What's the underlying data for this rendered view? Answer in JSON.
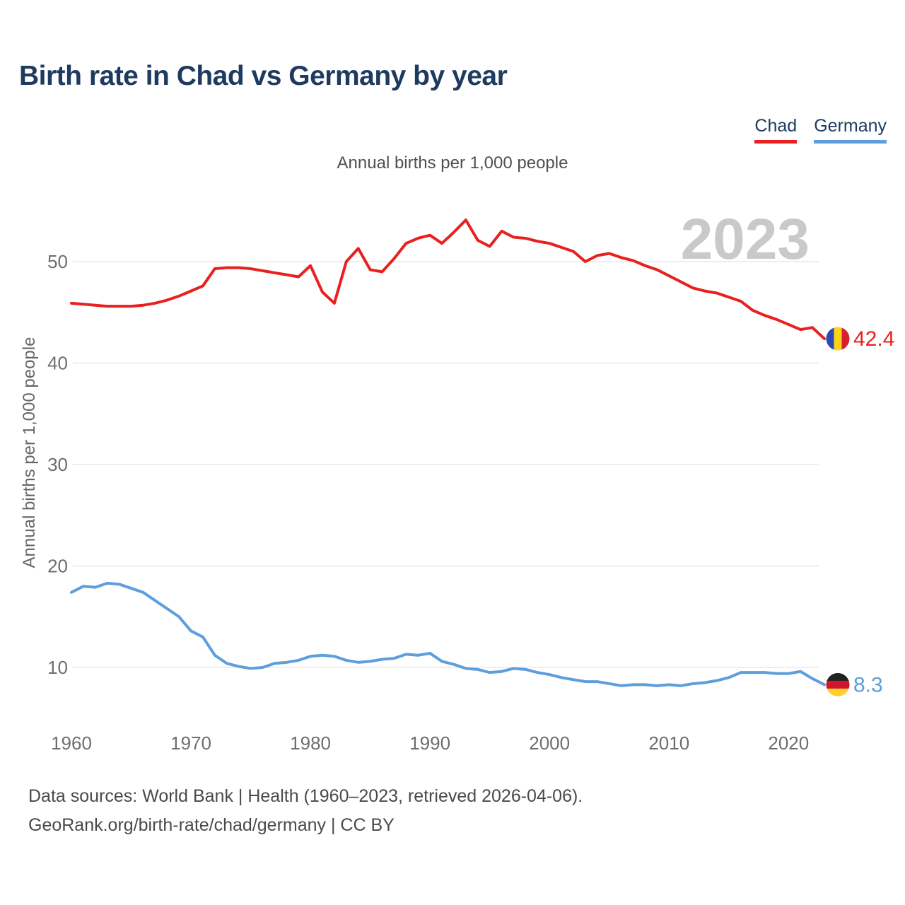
{
  "header": {
    "title": "Birth rate in Chad vs Germany by year"
  },
  "legend": [
    {
      "label": "Chad",
      "color": "#e8201e"
    },
    {
      "label": "Germany",
      "color": "#5d9edb"
    }
  ],
  "subtitle": "Annual births per 1,000 people",
  "watermark": "2023",
  "y_axis_title": "Annual births per 1,000 people",
  "footer": {
    "line1": "Data sources: World Bank | Health (1960–2023, retrieved 2026-04-06).",
    "line2": "GeoRank.org/birth-rate/chad/germany | CC BY"
  },
  "colors": {
    "title": "#1e3a5f",
    "chad": "#e8201e",
    "germany": "#5d9edb",
    "gridline": "#e8e8e8",
    "tick_label": "#6e6e6e",
    "watermark": "#c9c9c9",
    "footer_text": "#4a4a4a"
  },
  "chart_data": {
    "type": "line",
    "title": "Birth rate in Chad vs Germany by year",
    "subtitle": "Annual births per 1,000 people",
    "xlabel": "",
    "ylabel": "Annual births per 1,000 people",
    "grid": "horizontal",
    "legend_position": "top-right",
    "x_ticks": [
      1960,
      1970,
      1980,
      1990,
      2000,
      2010,
      2020
    ],
    "y_ticks": [
      10,
      20,
      30,
      40,
      50
    ],
    "ylim": [
      5,
      56
    ],
    "xlim": [
      1960,
      2023
    ],
    "x": [
      1960,
      1961,
      1962,
      1963,
      1964,
      1965,
      1966,
      1967,
      1968,
      1969,
      1970,
      1971,
      1972,
      1973,
      1974,
      1975,
      1976,
      1977,
      1978,
      1979,
      1980,
      1981,
      1982,
      1983,
      1984,
      1985,
      1986,
      1987,
      1988,
      1989,
      1990,
      1991,
      1992,
      1993,
      1994,
      1995,
      1996,
      1997,
      1998,
      1999,
      2000,
      2001,
      2002,
      2003,
      2004,
      2005,
      2006,
      2007,
      2008,
      2009,
      2010,
      2011,
      2012,
      2013,
      2014,
      2015,
      2016,
      2017,
      2018,
      2019,
      2020,
      2021,
      2022,
      2023
    ],
    "series": [
      {
        "id": "chad",
        "name": "Chad",
        "color": "#e8201e",
        "end_label": "42.4",
        "flag": {
          "icon": "chad-flag-icon",
          "orientation": "vertical",
          "colors": [
            "#2b49b6",
            "#fcd116",
            "#d7212f"
          ]
        },
        "values": [
          45.9,
          45.8,
          45.7,
          45.6,
          45.6,
          45.6,
          45.7,
          45.9,
          46.2,
          46.6,
          47.1,
          47.6,
          49.3,
          49.4,
          49.4,
          49.3,
          49.1,
          48.9,
          48.7,
          48.5,
          49.6,
          47.0,
          45.9,
          50.0,
          51.3,
          49.2,
          49.0,
          50.3,
          51.8,
          52.3,
          52.6,
          51.8,
          52.9,
          54.1,
          52.1,
          51.5,
          53.0,
          52.4,
          52.3,
          52.0,
          51.8,
          51.4,
          51.0,
          50.0,
          50.6,
          50.8,
          50.4,
          50.1,
          49.6,
          49.2,
          48.6,
          48.0,
          47.4,
          47.1,
          46.9,
          46.5,
          46.1,
          45.2,
          44.7,
          44.3,
          43.8,
          43.3,
          43.5,
          42.4
        ]
      },
      {
        "id": "germany",
        "name": "Germany",
        "color": "#5d9edb",
        "end_label": "8.3",
        "flag": {
          "icon": "germany-flag-icon",
          "orientation": "horizontal",
          "colors": [
            "#222222",
            "#d2152b",
            "#ffce33"
          ]
        },
        "values": [
          17.4,
          18.0,
          17.9,
          18.3,
          18.2,
          17.8,
          17.4,
          16.6,
          15.8,
          15.0,
          13.6,
          13.0,
          11.2,
          10.4,
          10.1,
          9.9,
          10.0,
          10.4,
          10.5,
          10.7,
          11.1,
          11.2,
          11.1,
          10.7,
          10.5,
          10.6,
          10.8,
          10.9,
          11.3,
          11.2,
          11.4,
          10.6,
          10.3,
          9.9,
          9.8,
          9.5,
          9.6,
          9.9,
          9.8,
          9.5,
          9.3,
          9.0,
          8.8,
          8.6,
          8.6,
          8.4,
          8.2,
          8.3,
          8.3,
          8.2,
          8.3,
          8.2,
          8.4,
          8.5,
          8.7,
          9.0,
          9.5,
          9.5,
          9.5,
          9.4,
          9.4,
          9.6,
          8.9,
          8.3
        ]
      }
    ]
  }
}
